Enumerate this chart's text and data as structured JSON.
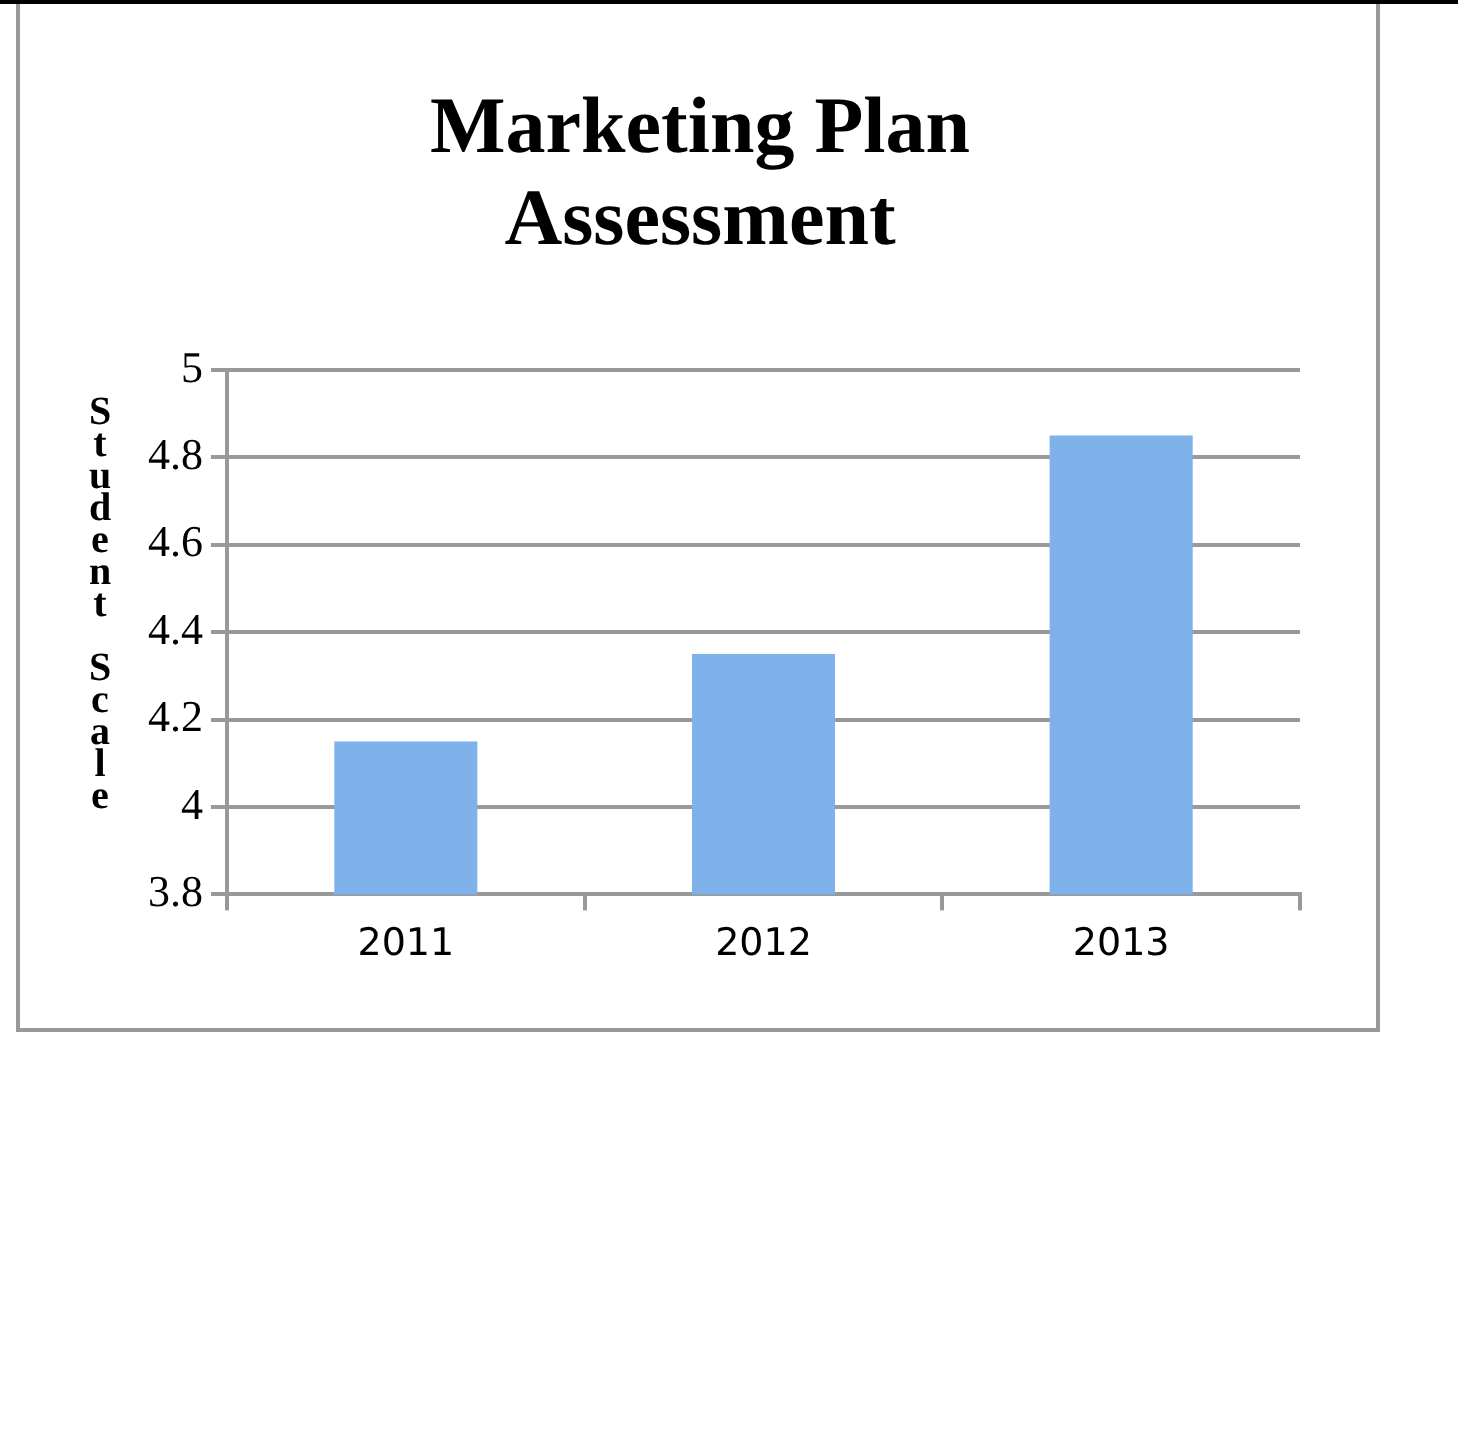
{
  "chart_data": {
    "type": "bar",
    "title": "Marketing Plan Assessment",
    "ylabel": "Student Scale",
    "categories": [
      "2011",
      "2012",
      "2013"
    ],
    "values": [
      4.15,
      4.35,
      4.85
    ],
    "color": "#7fb1ea",
    "ylim": [
      3.8,
      5
    ],
    "yticks": [
      3.8,
      4,
      4.2,
      4.4,
      4.6,
      4.8,
      5
    ],
    "grid": "y",
    "legend": false
  }
}
